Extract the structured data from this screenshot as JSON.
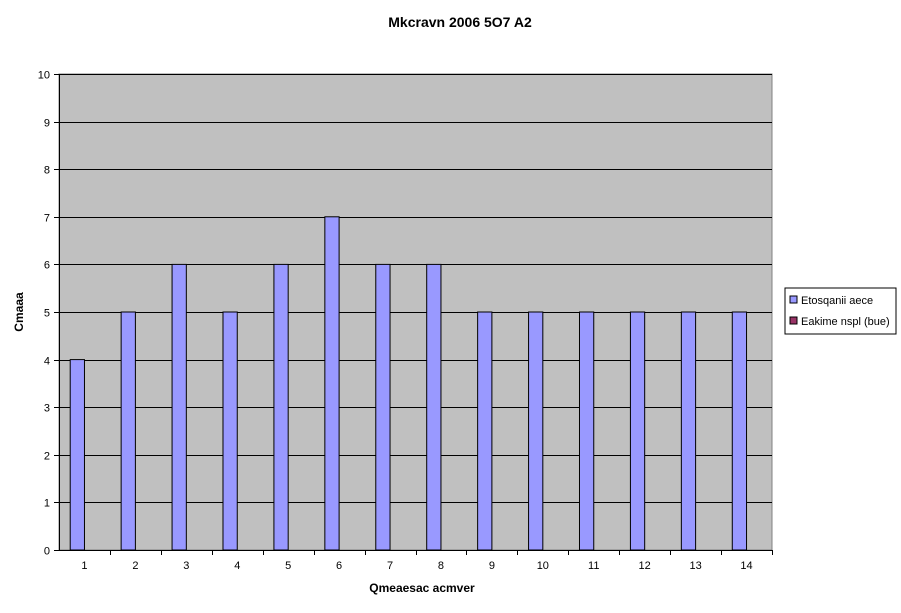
{
  "chart_data": {
    "type": "bar",
    "title": "Mkcravn 2006 5O7 A2",
    "xlabel": "Qmeaesac acmver",
    "ylabel": "Cmaaa",
    "categories": [
      "1",
      "2",
      "3",
      "4",
      "5",
      "6",
      "7",
      "8",
      "9",
      "10",
      "11",
      "12",
      "13",
      "14"
    ],
    "series": [
      {
        "name": "Etosqanii aece",
        "color": "#9999ff",
        "values": [
          4,
          5,
          6,
          5,
          6,
          7,
          6,
          6,
          5,
          5,
          5,
          5,
          5,
          5
        ]
      },
      {
        "name": "Eakime nspl (bue)",
        "color": "#993366",
        "values": [
          0,
          0,
          0,
          0,
          0,
          0,
          0,
          0,
          0,
          0,
          0,
          0,
          0,
          0
        ]
      }
    ],
    "ylim": [
      0,
      10
    ],
    "yticks": [
      "0",
      "1",
      "2",
      "3",
      "4",
      "5",
      "6",
      "7",
      "8",
      "9",
      "10"
    ],
    "grid": true,
    "legend_position": "right",
    "plot_background": "#c0c0c0"
  }
}
